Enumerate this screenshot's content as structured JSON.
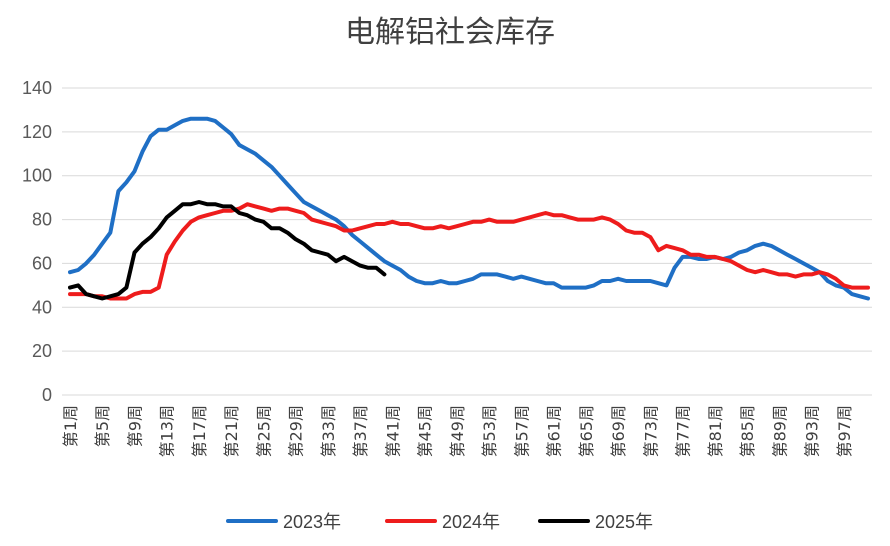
{
  "chart_data": {
    "type": "line",
    "title": "电解铝社会库存",
    "xlabel": "",
    "ylabel": "",
    "ylim": [
      0,
      140
    ],
    "yticks": [
      0,
      20,
      40,
      60,
      80,
      100,
      120,
      140
    ],
    "grid": true,
    "legend_position": "bottom",
    "x_tick_labels": [
      "第1周",
      "第5周",
      "第9周",
      "第13周",
      "第17周",
      "第21周",
      "第25周",
      "第29周",
      "第33周",
      "第37周",
      "第41周",
      "第45周",
      "第49周",
      "第53周",
      "第57周",
      "第61周",
      "第65周",
      "第69周",
      "第73周",
      "第77周",
      "第81周",
      "第85周",
      "第89周",
      "第93周",
      "第97周"
    ],
    "x_tick_weeks": [
      1,
      5,
      9,
      13,
      17,
      21,
      25,
      29,
      33,
      37,
      41,
      45,
      49,
      53,
      57,
      61,
      65,
      69,
      73,
      77,
      81,
      85,
      89,
      93,
      97
    ],
    "x_range": [
      1,
      100
    ],
    "series": [
      {
        "name": "2023年",
        "color": "#1f6fc5",
        "x": [
          1,
          2,
          3,
          4,
          5,
          6,
          7,
          8,
          9,
          10,
          11,
          12,
          13,
          14,
          15,
          16,
          17,
          18,
          19,
          20,
          21,
          22,
          23,
          24,
          25,
          26,
          27,
          28,
          29,
          30,
          31,
          32,
          33,
          34,
          35,
          36,
          37,
          38,
          39,
          40,
          41,
          42,
          43,
          44,
          45,
          46,
          47,
          48,
          49,
          50,
          51,
          52,
          53,
          54,
          55,
          56,
          57,
          58,
          59,
          60,
          61,
          62,
          63,
          64,
          65,
          66,
          67,
          68,
          69,
          70,
          71,
          72,
          73,
          74,
          75,
          76,
          77,
          78,
          79,
          80,
          81,
          82,
          83,
          84,
          85,
          86,
          87,
          88,
          89,
          90,
          91,
          92,
          93,
          94,
          95,
          96,
          97,
          98,
          99,
          100
        ],
        "values": [
          56,
          57,
          60,
          64,
          69,
          74,
          93,
          97,
          102,
          111,
          118,
          121,
          121,
          123,
          125,
          126,
          126,
          126,
          125,
          122,
          119,
          114,
          112,
          110,
          107,
          104,
          100,
          96,
          92,
          88,
          86,
          84,
          82,
          80,
          77,
          73,
          70,
          67,
          64,
          61,
          59,
          57,
          54,
          52,
          51,
          51,
          52,
          51,
          51,
          52,
          53,
          55,
          55,
          55,
          54,
          53,
          54,
          53,
          52,
          51,
          51,
          49,
          49,
          49,
          49,
          50,
          52,
          52,
          53,
          52,
          52,
          52,
          52,
          51,
          50,
          58,
          63,
          63,
          62,
          62,
          63,
          62,
          63,
          65,
          66,
          68,
          69,
          68,
          66,
          64,
          62,
          60,
          58,
          56,
          52,
          50,
          49,
          46,
          45,
          44
        ]
      },
      {
        "name": "2024年",
        "color": "#ee1c1c",
        "x": [
          1,
          2,
          3,
          4,
          5,
          6,
          7,
          8,
          9,
          10,
          11,
          12,
          13,
          14,
          15,
          16,
          17,
          18,
          19,
          20,
          21,
          22,
          23,
          24,
          25,
          26,
          27,
          28,
          29,
          30,
          31,
          32,
          33,
          34,
          35,
          36,
          37,
          38,
          39,
          40,
          41,
          42,
          43,
          44,
          45,
          46,
          47,
          48,
          49,
          50,
          51,
          52,
          53,
          54,
          55,
          56,
          57,
          58,
          59,
          60,
          61,
          62,
          63,
          64,
          65,
          66,
          67,
          68,
          69,
          70,
          71,
          72,
          73,
          74,
          75,
          76,
          77,
          78,
          79,
          80,
          81,
          82,
          83,
          84,
          85,
          86,
          87,
          88,
          89,
          90,
          91,
          92,
          93,
          94,
          95,
          96,
          97,
          98,
          99,
          100
        ],
        "values": [
          46,
          46,
          46,
          45,
          45,
          44,
          44,
          44,
          46,
          47,
          47,
          49,
          64,
          70,
          75,
          79,
          81,
          82,
          83,
          84,
          84,
          85,
          87,
          86,
          85,
          84,
          85,
          85,
          84,
          83,
          80,
          79,
          78,
          77,
          75,
          75,
          76,
          77,
          78,
          78,
          79,
          78,
          78,
          77,
          76,
          76,
          77,
          76,
          77,
          78,
          79,
          79,
          80,
          79,
          79,
          79,
          80,
          81,
          82,
          83,
          82,
          82,
          81,
          80,
          80,
          80,
          81,
          80,
          78,
          75,
          74,
          74,
          72,
          66,
          68,
          67,
          66,
          64,
          64,
          63,
          63,
          62,
          61,
          59,
          57,
          56,
          57,
          56,
          55,
          55,
          54,
          55,
          55,
          56,
          55,
          53,
          50,
          49,
          49,
          49
        ]
      },
      {
        "name": "2025年",
        "color": "#000000",
        "x": [
          1,
          2,
          3,
          4,
          5,
          6,
          7,
          8,
          9,
          10,
          11,
          12,
          13,
          14,
          15,
          16,
          17,
          18,
          19,
          20,
          21,
          22,
          23,
          24,
          25,
          26,
          27,
          28,
          29,
          30,
          31,
          32,
          33,
          34,
          35,
          36,
          37,
          38,
          39,
          40
        ],
        "values": [
          49,
          50,
          46,
          45,
          44,
          45,
          46,
          49,
          65,
          69,
          72,
          76,
          81,
          84,
          87,
          87,
          88,
          87,
          87,
          86,
          86,
          83,
          82,
          80,
          79,
          76,
          76,
          74,
          71,
          69,
          66,
          65,
          64,
          61,
          63,
          61,
          59,
          58,
          58,
          55
        ]
      }
    ]
  }
}
